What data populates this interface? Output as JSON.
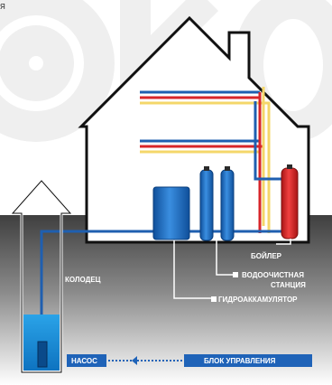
{
  "corner_text": "Я",
  "labels": {
    "well": "КОЛОДЕЦ",
    "boiler": "БОЙЛЕР",
    "water_station_line1": "ВОДООЧИСТНАЯ",
    "water_station_line2": "СТАНЦИЯ",
    "accumulator": "ГИДРОАККАМУЛЯТОР",
    "pump": "НАСОС",
    "control_unit": "БЛОК УПРАВЛЕНИЯ"
  },
  "colors": {
    "ground_top": "#4a4a4a",
    "ground_bottom": "#ffffff",
    "house_outline": "#111111",
    "pipe_blue": "#1f5fb0",
    "pipe_red": "#d8252a",
    "pipe_yellow": "#f4d76a",
    "tank_blue": "#1f6fc4",
    "boiler_red": "#e02b2b",
    "well_water": "#1a8fd6",
    "label_box": "#1f63b8",
    "watermark": "#ededed"
  }
}
